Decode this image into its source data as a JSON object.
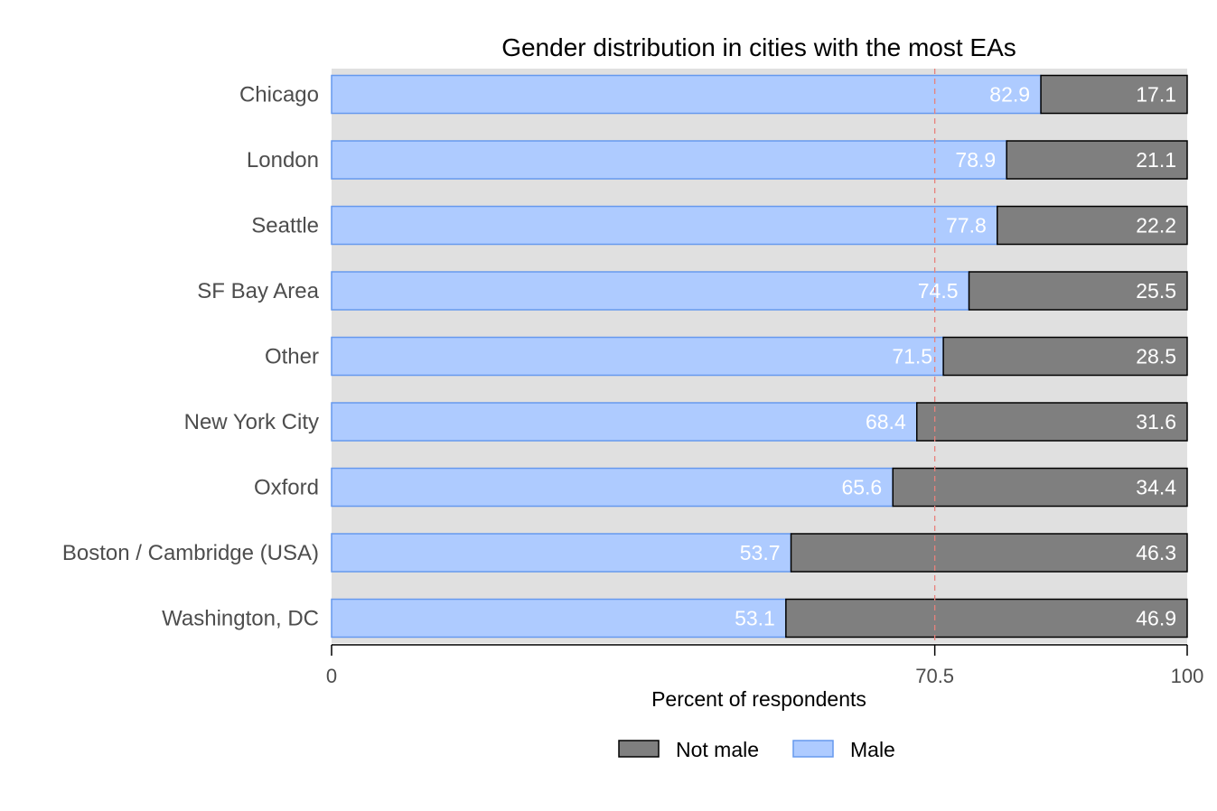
{
  "chart_data": {
    "type": "bar",
    "orientation": "horizontal",
    "stacked": true,
    "title": "Gender distribution in cities with the most EAs",
    "xlabel": "Percent of respondents",
    "ylabel": "",
    "xlim": [
      0,
      100
    ],
    "xticks": [
      "0",
      "70.5",
      "100"
    ],
    "reference_line": {
      "value": 70.5,
      "style": "dashed",
      "color": "#e8817b"
    },
    "categories": [
      "Chicago",
      "London",
      "Seattle",
      "SF Bay Area",
      "Other",
      "New York City",
      "Oxford",
      "Boston / Cambridge (USA)",
      "Washington, DC"
    ],
    "series": [
      {
        "name": "Male",
        "color": "#aecbff",
        "stroke": "#6699ee",
        "values": [
          82.9,
          78.9,
          77.8,
          74.5,
          71.5,
          68.4,
          65.6,
          53.7,
          53.1
        ],
        "labels": [
          "82.9",
          "78.9",
          "77.8",
          "74.5",
          "71.5",
          "68.4",
          "65.6",
          "53.7",
          "53.1"
        ]
      },
      {
        "name": "Not male",
        "color": "#7f7f7f",
        "stroke": "#000000",
        "values": [
          17.1,
          21.1,
          22.2,
          25.5,
          28.5,
          31.6,
          34.4,
          46.3,
          46.9
        ],
        "labels": [
          "17.1",
          "21.1",
          "22.2",
          "25.5",
          "28.5",
          "31.6",
          "34.4",
          "46.3",
          "46.9"
        ]
      }
    ],
    "legend": {
      "position": "bottom",
      "order": [
        "Not male",
        "Male"
      ]
    },
    "panel_background": "#e0e0e0",
    "grid": false
  }
}
